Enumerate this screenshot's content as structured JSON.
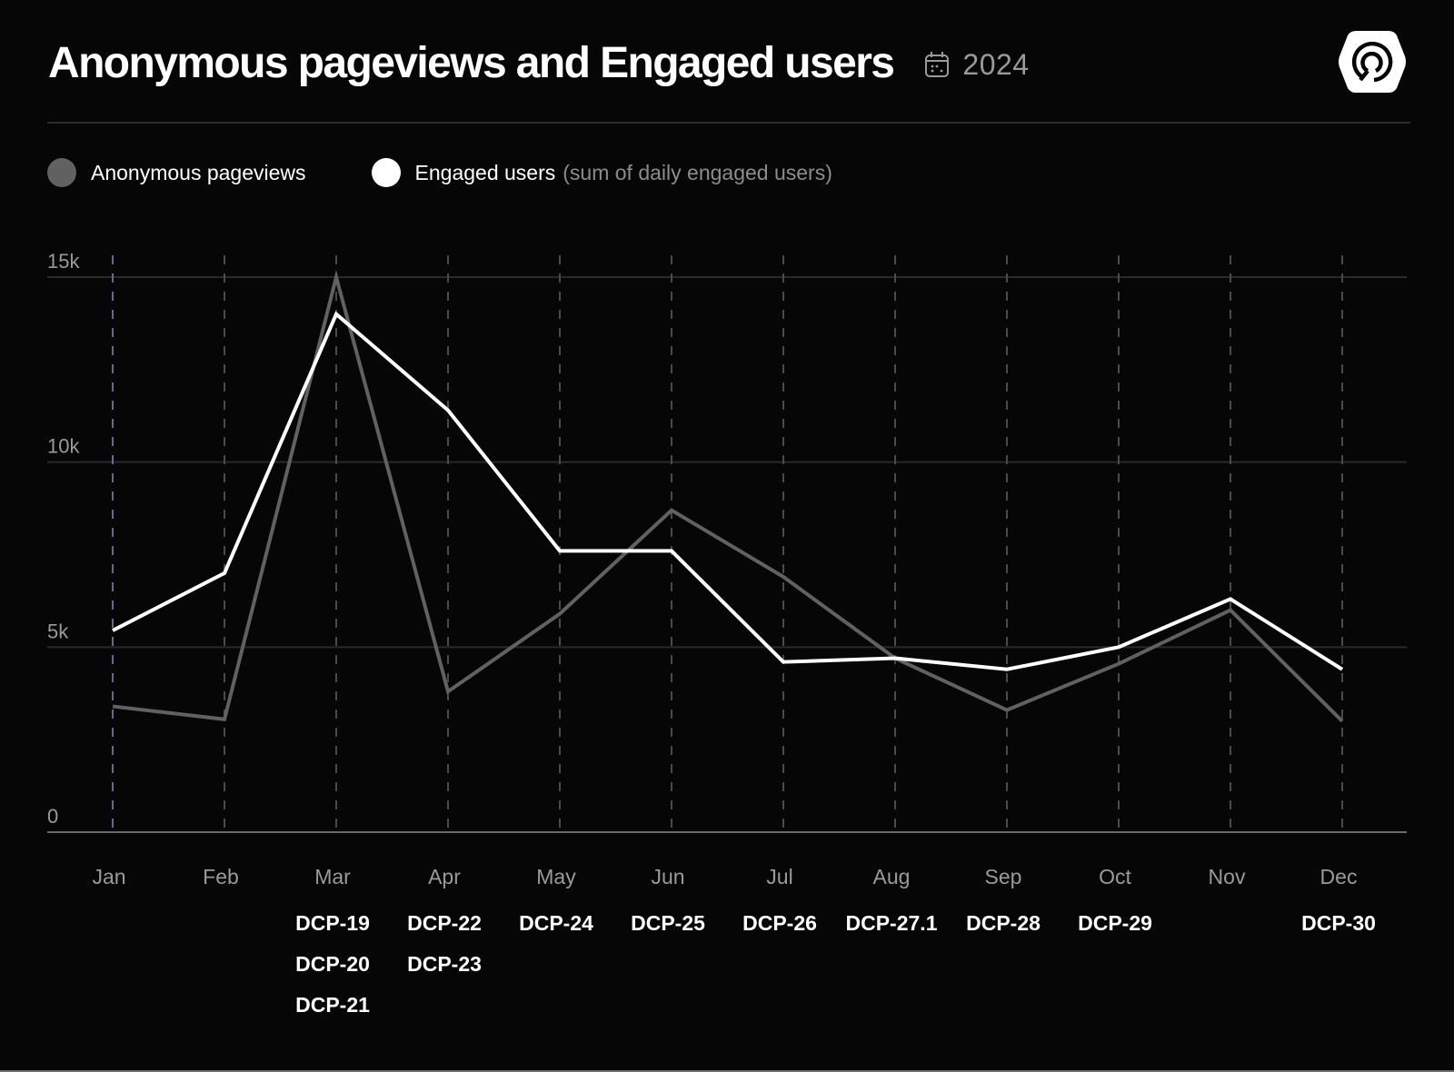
{
  "header": {
    "title": "Anonymous pageviews and Engaged users",
    "year": "2024",
    "calendar_icon": "calendar-icon",
    "logo_icon": "hexagon-signal-logo-icon"
  },
  "legend": {
    "items": [
      {
        "label": "Anonymous pageviews",
        "note": "",
        "color": "#616161"
      },
      {
        "label": "Engaged users",
        "note": "(sum of daily engaged users)",
        "color": "#ffffff"
      }
    ]
  },
  "chart_data": {
    "type": "line",
    "title": "Anonymous pageviews and Engaged users",
    "subtitle": "2024",
    "xlabel": "",
    "ylabel": "",
    "categories": [
      "Jan",
      "Feb",
      "Mar",
      "Apr",
      "May",
      "Jun",
      "Jul",
      "Aug",
      "Sep",
      "Oct",
      "Nov",
      "Dec"
    ],
    "ylim": [
      0,
      15000
    ],
    "yticks": [
      {
        "value": 0,
        "label": "0"
      },
      {
        "value": 5000,
        "label": "5k"
      },
      {
        "value": 10000,
        "label": "10k"
      },
      {
        "value": 15000,
        "label": "15k"
      }
    ],
    "grid": true,
    "legend_position": "top-left",
    "series": [
      {
        "name": "Anonymous pageviews",
        "color": "#616161",
        "values": [
          3400,
          3050,
          15000,
          3800,
          5900,
          8700,
          6900,
          4700,
          3300,
          4550,
          6000,
          3000
        ]
      },
      {
        "name": "Engaged users",
        "note": "(sum of daily engaged users)",
        "color": "#ffffff",
        "values": [
          5450,
          7000,
          14000,
          11400,
          7600,
          7600,
          4600,
          4700,
          4400,
          5000,
          6300,
          4400
        ]
      }
    ],
    "annotations": [
      {
        "category": "Jan",
        "labels": []
      },
      {
        "category": "Feb",
        "labels": []
      },
      {
        "category": "Mar",
        "labels": [
          "DCP-19",
          "DCP-20",
          "DCP-21"
        ]
      },
      {
        "category": "Apr",
        "labels": [
          "DCP-22",
          "DCP-23"
        ]
      },
      {
        "category": "May",
        "labels": [
          "DCP-24"
        ]
      },
      {
        "category": "Jun",
        "labels": [
          "DCP-25"
        ]
      },
      {
        "category": "Jul",
        "labels": [
          "DCP-26"
        ]
      },
      {
        "category": "Aug",
        "labels": [
          "DCP-27.1"
        ]
      },
      {
        "category": "Sep",
        "labels": [
          "DCP-28"
        ]
      },
      {
        "category": "Oct",
        "labels": [
          "DCP-29"
        ]
      },
      {
        "category": "Nov",
        "labels": []
      },
      {
        "category": "Dec",
        "labels": [
          "DCP-30"
        ]
      }
    ],
    "highlight_category": "Jan",
    "highlight_color": "#5a6f95"
  }
}
